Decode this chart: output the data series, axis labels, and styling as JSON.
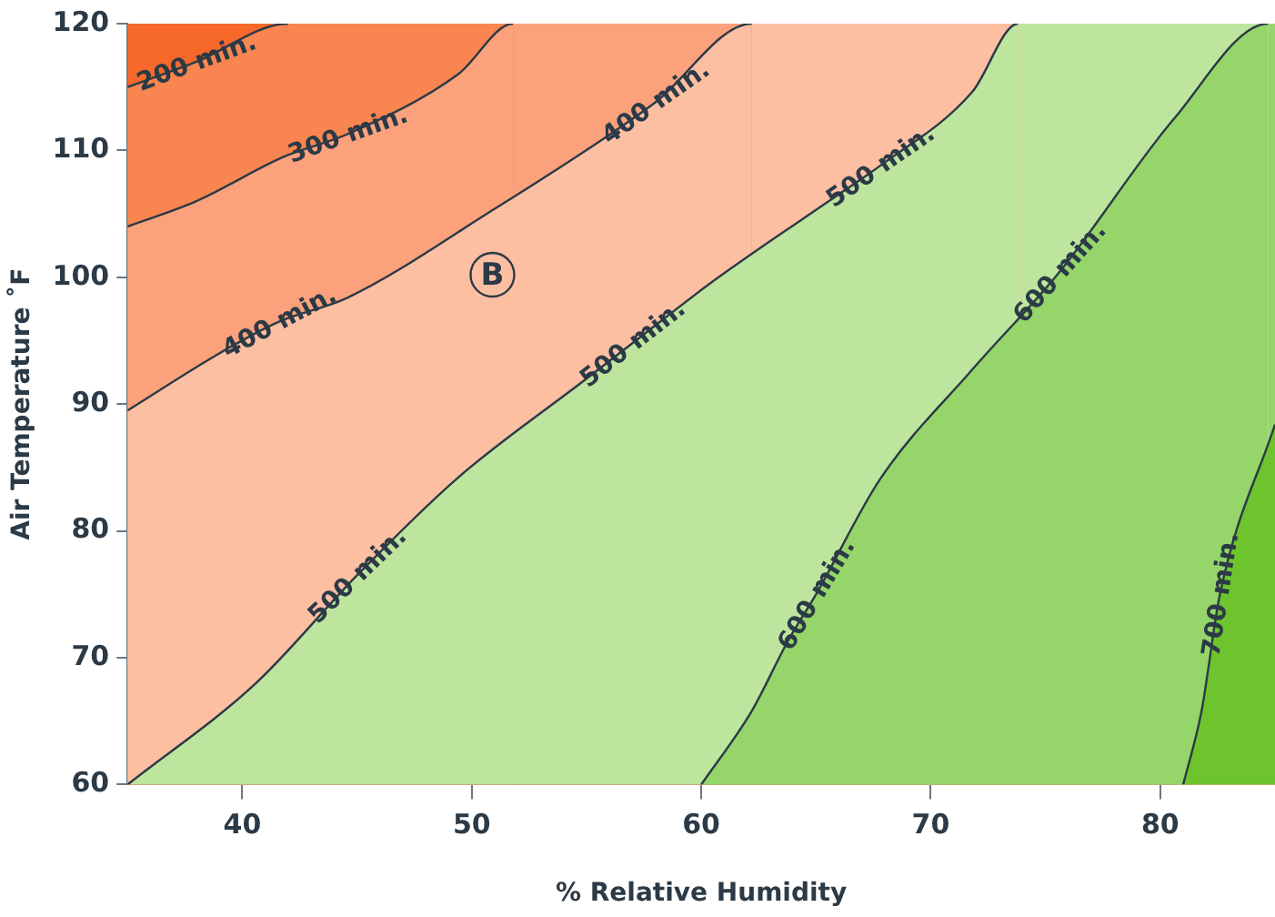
{
  "chart_data": {
    "type": "area",
    "xlabel": "% Relative Humidity",
    "ylabel": "Air Temperature ˚F",
    "xlim": [
      35,
      85
    ],
    "xticks": [
      40,
      50,
      60,
      70,
      80
    ],
    "ylim": [
      60,
      120
    ],
    "yticks": [
      60,
      70,
      80,
      90,
      100,
      110,
      120
    ],
    "grid": false,
    "legend": false,
    "marker": "none",
    "line_style": "solid",
    "series": [
      {
        "color": "#f6692a",
        "x": [
          35,
          85
        ],
        "values": [
          120,
          120
        ]
      },
      {
        "color": "#f98650",
        "x": [
          35,
          38,
          42,
          85
        ],
        "values": [
          115,
          117,
          120,
          120
        ]
      },
      {
        "color": "#fba27c",
        "x": [
          35,
          38,
          41.8,
          44.6,
          49.4,
          51.8,
          85
        ],
        "values": [
          104,
          106,
          109.5,
          111.3,
          116,
          120,
          120
        ]
      },
      {
        "color": "#fdbfa2",
        "x": [
          35,
          39,
          41.6,
          44.6,
          51,
          55.8,
          58,
          62.2,
          85
        ],
        "values": [
          89.5,
          94,
          96.5,
          98.4,
          105.4,
          111,
          113.8,
          120,
          120
        ]
      },
      {
        "color": "#bee59e",
        "x": [
          35,
          40.6,
          45,
          49.4,
          55,
          57,
          60.6,
          66.2,
          67.8,
          71.8,
          73.8,
          85
        ],
        "values": [
          60,
          68,
          76.5,
          84.2,
          92,
          94.8,
          99.8,
          106.8,
          108.8,
          114.6,
          120,
          120
        ]
      },
      {
        "color": "#95d56a",
        "x": [
          60,
          62.2,
          63.8,
          65,
          67.8,
          71.8,
          75.6,
          80.6,
          84.7,
          85
        ],
        "values": [
          60,
          65.8,
          71.4,
          75,
          84.1,
          92.7,
          100.4,
          112.5,
          120,
          120
        ]
      },
      {
        "color": "#6dc42d",
        "x": [
          81,
          81.8,
          82.6,
          85
        ],
        "values": [
          60,
          65.8,
          75,
          88.4
        ]
      }
    ],
    "annotations": [
      {
        "text": "200 min.",
        "x": 38,
        "y": 117
      },
      {
        "text": "300 min.",
        "x": 44.6,
        "y": 111.3
      },
      {
        "text": "400 min.",
        "x": 58,
        "y": 113.8
      },
      {
        "text": "400 min.",
        "x": 41.6,
        "y": 96.5
      },
      {
        "text": "500 min.",
        "x": 67.8,
        "y": 108.8
      },
      {
        "text": "500 min.",
        "x": 57,
        "y": 94.8
      },
      {
        "text": "500 min.",
        "x": 45,
        "y": 76.5
      },
      {
        "text": "600 min.",
        "x": 75.6,
        "y": 100.4
      },
      {
        "text": "600 min.",
        "x": 65,
        "y": 75
      },
      {
        "text": "700 min.",
        "x": 82.6,
        "y": 75
      },
      "B"
    ]
  }
}
